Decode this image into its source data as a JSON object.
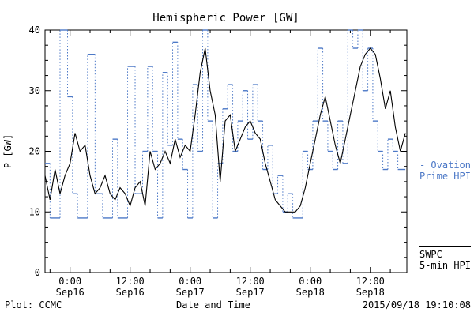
{
  "title": "Hemispheric Power [GW]",
  "y_axis_label": "P [GW]",
  "x_axis_label": "Date and Time",
  "footer": {
    "left": "Plot: CCMC",
    "right": "2015/09/18 19:10:08"
  },
  "legend": {
    "ovation": {
      "marker": "-",
      "line1": "Ovation",
      "line2": "Prime HPI",
      "color": "#4d79c7"
    },
    "swpc": {
      "line1": "SWPC",
      "line2": "5-min HPI",
      "color": "#000000"
    }
  },
  "chart_data": {
    "type": "line",
    "title": "Hemispheric Power [GW]",
    "xlabel": "Date and Time",
    "ylabel": "P [GW]",
    "ylim": [
      0,
      40
    ],
    "xlim_hours": [
      0,
      72.3
    ],
    "y_ticks": [
      0,
      10,
      20,
      30,
      40
    ],
    "y_minor_step": 2.5,
    "x_minor_step_hours": 4,
    "x_ticks": [
      {
        "t": 5,
        "line1": "0:00",
        "line2": "Sep16"
      },
      {
        "t": 17,
        "line1": "12:00",
        "line2": "Sep16"
      },
      {
        "t": 29,
        "line1": "0:00",
        "line2": "Sep17"
      },
      {
        "t": 41,
        "line1": "12:00",
        "line2": "Sep17"
      },
      {
        "t": 53,
        "line1": "0:00",
        "line2": "Sep18"
      },
      {
        "t": 65,
        "line1": "12:00",
        "line2": "Sep18"
      }
    ],
    "series": [
      {
        "name": "SWPC 5-min HPI",
        "style": "solid",
        "color": "#000000",
        "x_start_hours": 0,
        "x_step_hours": 1,
        "y": [
          16,
          12,
          17,
          13,
          16,
          18,
          23,
          20,
          21,
          16,
          13,
          14,
          16,
          13,
          12,
          14,
          13,
          11,
          14,
          15,
          11,
          20,
          17,
          18,
          20,
          18,
          22,
          19,
          21,
          20,
          26,
          33,
          37,
          30,
          26,
          15,
          25,
          26,
          20,
          22,
          24,
          25,
          23,
          22,
          18,
          15,
          12,
          11,
          10,
          10,
          10,
          11,
          14,
          18,
          22,
          26,
          29,
          25,
          21,
          18,
          22,
          26,
          30,
          34,
          36,
          37,
          36,
          32,
          27,
          30,
          24,
          20,
          23
        ]
      },
      {
        "name": "Ovation Prime HPI",
        "style": "step-dotted",
        "color": "#4d79c7",
        "steps": [
          [
            0,
            1,
            18
          ],
          [
            1,
            3,
            9
          ],
          [
            3,
            4.5,
            40
          ],
          [
            4.5,
            5.5,
            29
          ],
          [
            5.5,
            6.5,
            13
          ],
          [
            6.5,
            8.5,
            9
          ],
          [
            8.5,
            10,
            36
          ],
          [
            10,
            11.5,
            13
          ],
          [
            11.5,
            13.5,
            9
          ],
          [
            13.5,
            14.5,
            22
          ],
          [
            14.5,
            16.5,
            9
          ],
          [
            16.5,
            18,
            34
          ],
          [
            18,
            19.5,
            13
          ],
          [
            19.5,
            20.5,
            20
          ],
          [
            20.5,
            21.5,
            34
          ],
          [
            21.5,
            22.5,
            20
          ],
          [
            22.5,
            23.5,
            9
          ],
          [
            23.5,
            24.5,
            33
          ],
          [
            24.5,
            25.5,
            21
          ],
          [
            25.5,
            26.5,
            38
          ],
          [
            26.5,
            27.5,
            22
          ],
          [
            27.5,
            28.5,
            17
          ],
          [
            28.5,
            29.5,
            9
          ],
          [
            29.5,
            30.5,
            31
          ],
          [
            30.5,
            31.5,
            20
          ],
          [
            31.5,
            32.5,
            40
          ],
          [
            32.5,
            33.5,
            25
          ],
          [
            33.5,
            34.5,
            9
          ],
          [
            34.5,
            35.5,
            18
          ],
          [
            35.5,
            36.5,
            27
          ],
          [
            36.5,
            37.5,
            31
          ],
          [
            37.5,
            38.5,
            20
          ],
          [
            38.5,
            39.5,
            25
          ],
          [
            39.5,
            40.5,
            30
          ],
          [
            40.5,
            41.5,
            22
          ],
          [
            41.5,
            42.5,
            31
          ],
          [
            42.5,
            43.5,
            25
          ],
          [
            43.5,
            44.5,
            17
          ],
          [
            44.5,
            45.5,
            21
          ],
          [
            45.5,
            46.5,
            13
          ],
          [
            46.5,
            47.5,
            16
          ],
          [
            47.5,
            48.5,
            10
          ],
          [
            48.5,
            49.5,
            13
          ],
          [
            49.5,
            51.5,
            9
          ],
          [
            51.5,
            52.5,
            20
          ],
          [
            52.5,
            53.5,
            17
          ],
          [
            53.5,
            54.5,
            25
          ],
          [
            54.5,
            55.5,
            37
          ],
          [
            55.5,
            56.5,
            25
          ],
          [
            56.5,
            57.5,
            20
          ],
          [
            57.5,
            58.5,
            17
          ],
          [
            58.5,
            59.5,
            25
          ],
          [
            59.5,
            60.5,
            18
          ],
          [
            60.5,
            61.5,
            40
          ],
          [
            61.5,
            62.5,
            37
          ],
          [
            62.5,
            63.5,
            40
          ],
          [
            63.5,
            64.5,
            30
          ],
          [
            64.5,
            65.5,
            37
          ],
          [
            65.5,
            66.5,
            25
          ],
          [
            66.5,
            67.5,
            20
          ],
          [
            67.5,
            68.5,
            17
          ],
          [
            68.5,
            69.5,
            22
          ],
          [
            69.5,
            70.5,
            20
          ],
          [
            70.5,
            72,
            17
          ]
        ]
      }
    ]
  }
}
